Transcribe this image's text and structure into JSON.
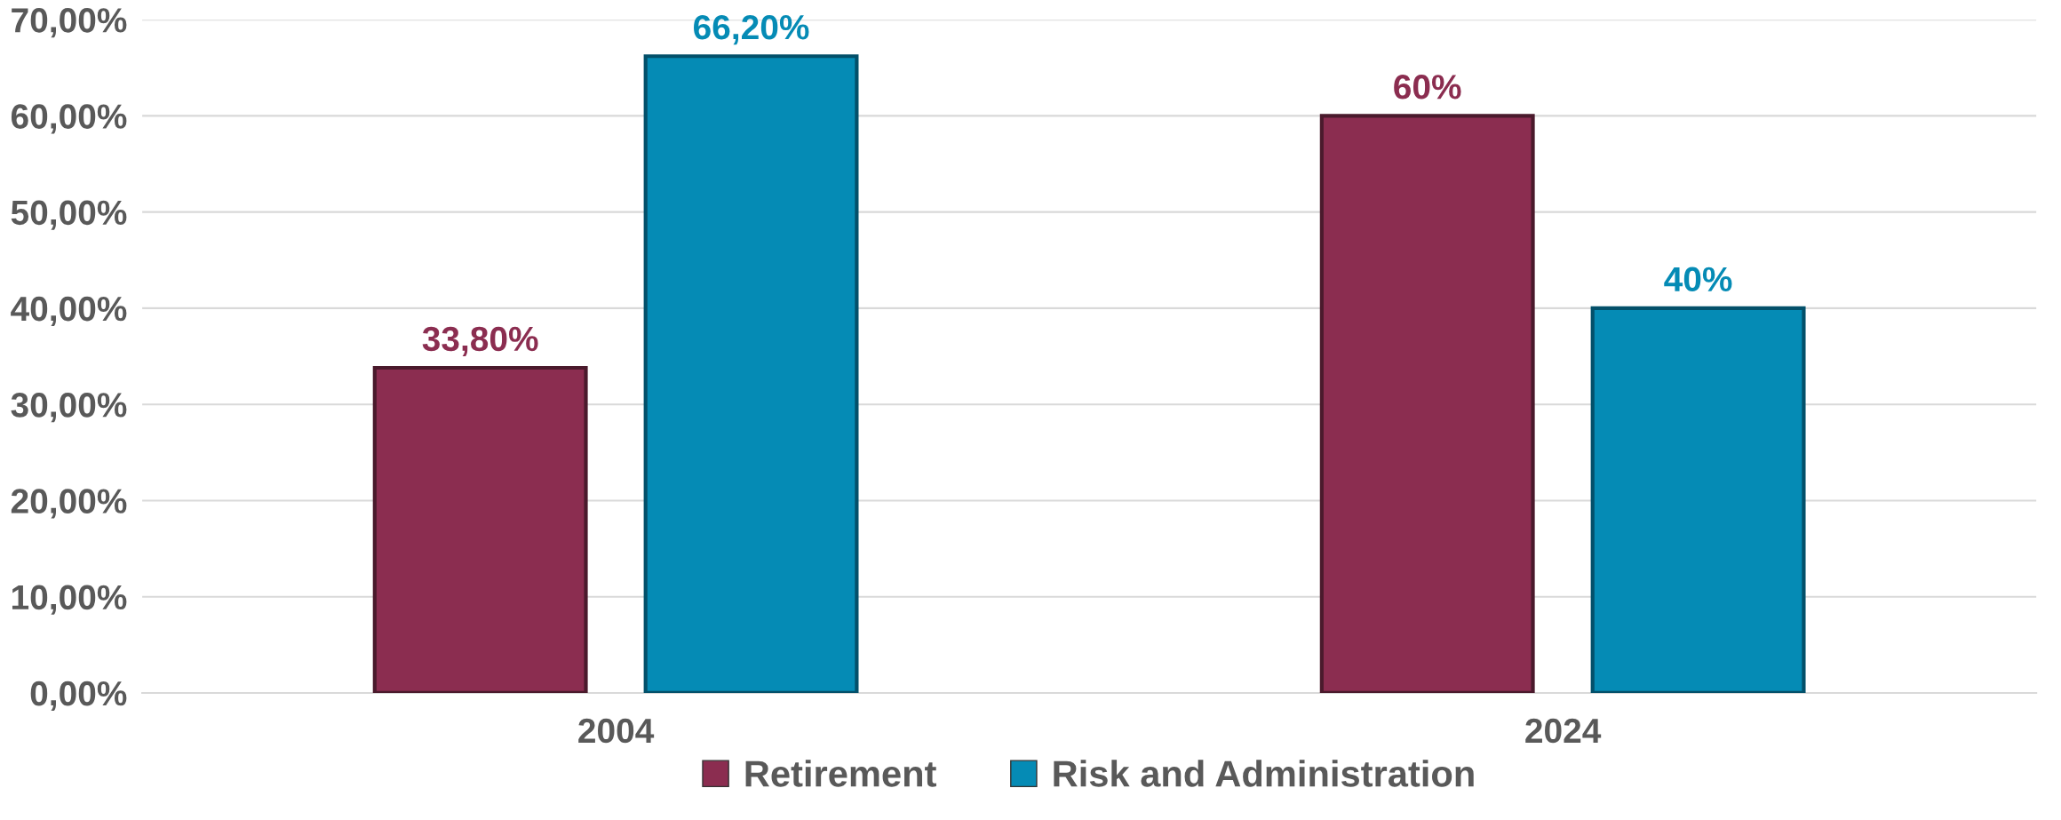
{
  "chart_data": {
    "type": "bar",
    "categories": [
      "2004",
      "2024"
    ],
    "series": [
      {
        "name": "Retirement",
        "color": "#8b2d50",
        "values": [
          33.8,
          60
        ],
        "value_labels": [
          "33,80%",
          "60%"
        ]
      },
      {
        "name": "Risk and Administration",
        "color": "#058bb5",
        "values": [
          66.2,
          40
        ],
        "value_labels": [
          "66,20%",
          "40%"
        ]
      }
    ],
    "ylim": [
      0,
      70
    ],
    "yticks": [
      {
        "value": 0,
        "label": "0,00%"
      },
      {
        "value": 10,
        "label": "10,00%"
      },
      {
        "value": 20,
        "label": "20,00%"
      },
      {
        "value": 30,
        "label": "30,00%"
      },
      {
        "value": 40,
        "label": "40,00%"
      },
      {
        "value": 50,
        "label": "50,00%"
      },
      {
        "value": 60,
        "label": "60,00%"
      },
      {
        "value": 70,
        "label": "70,00%"
      }
    ],
    "grid": "y",
    "legend": "bottom"
  }
}
